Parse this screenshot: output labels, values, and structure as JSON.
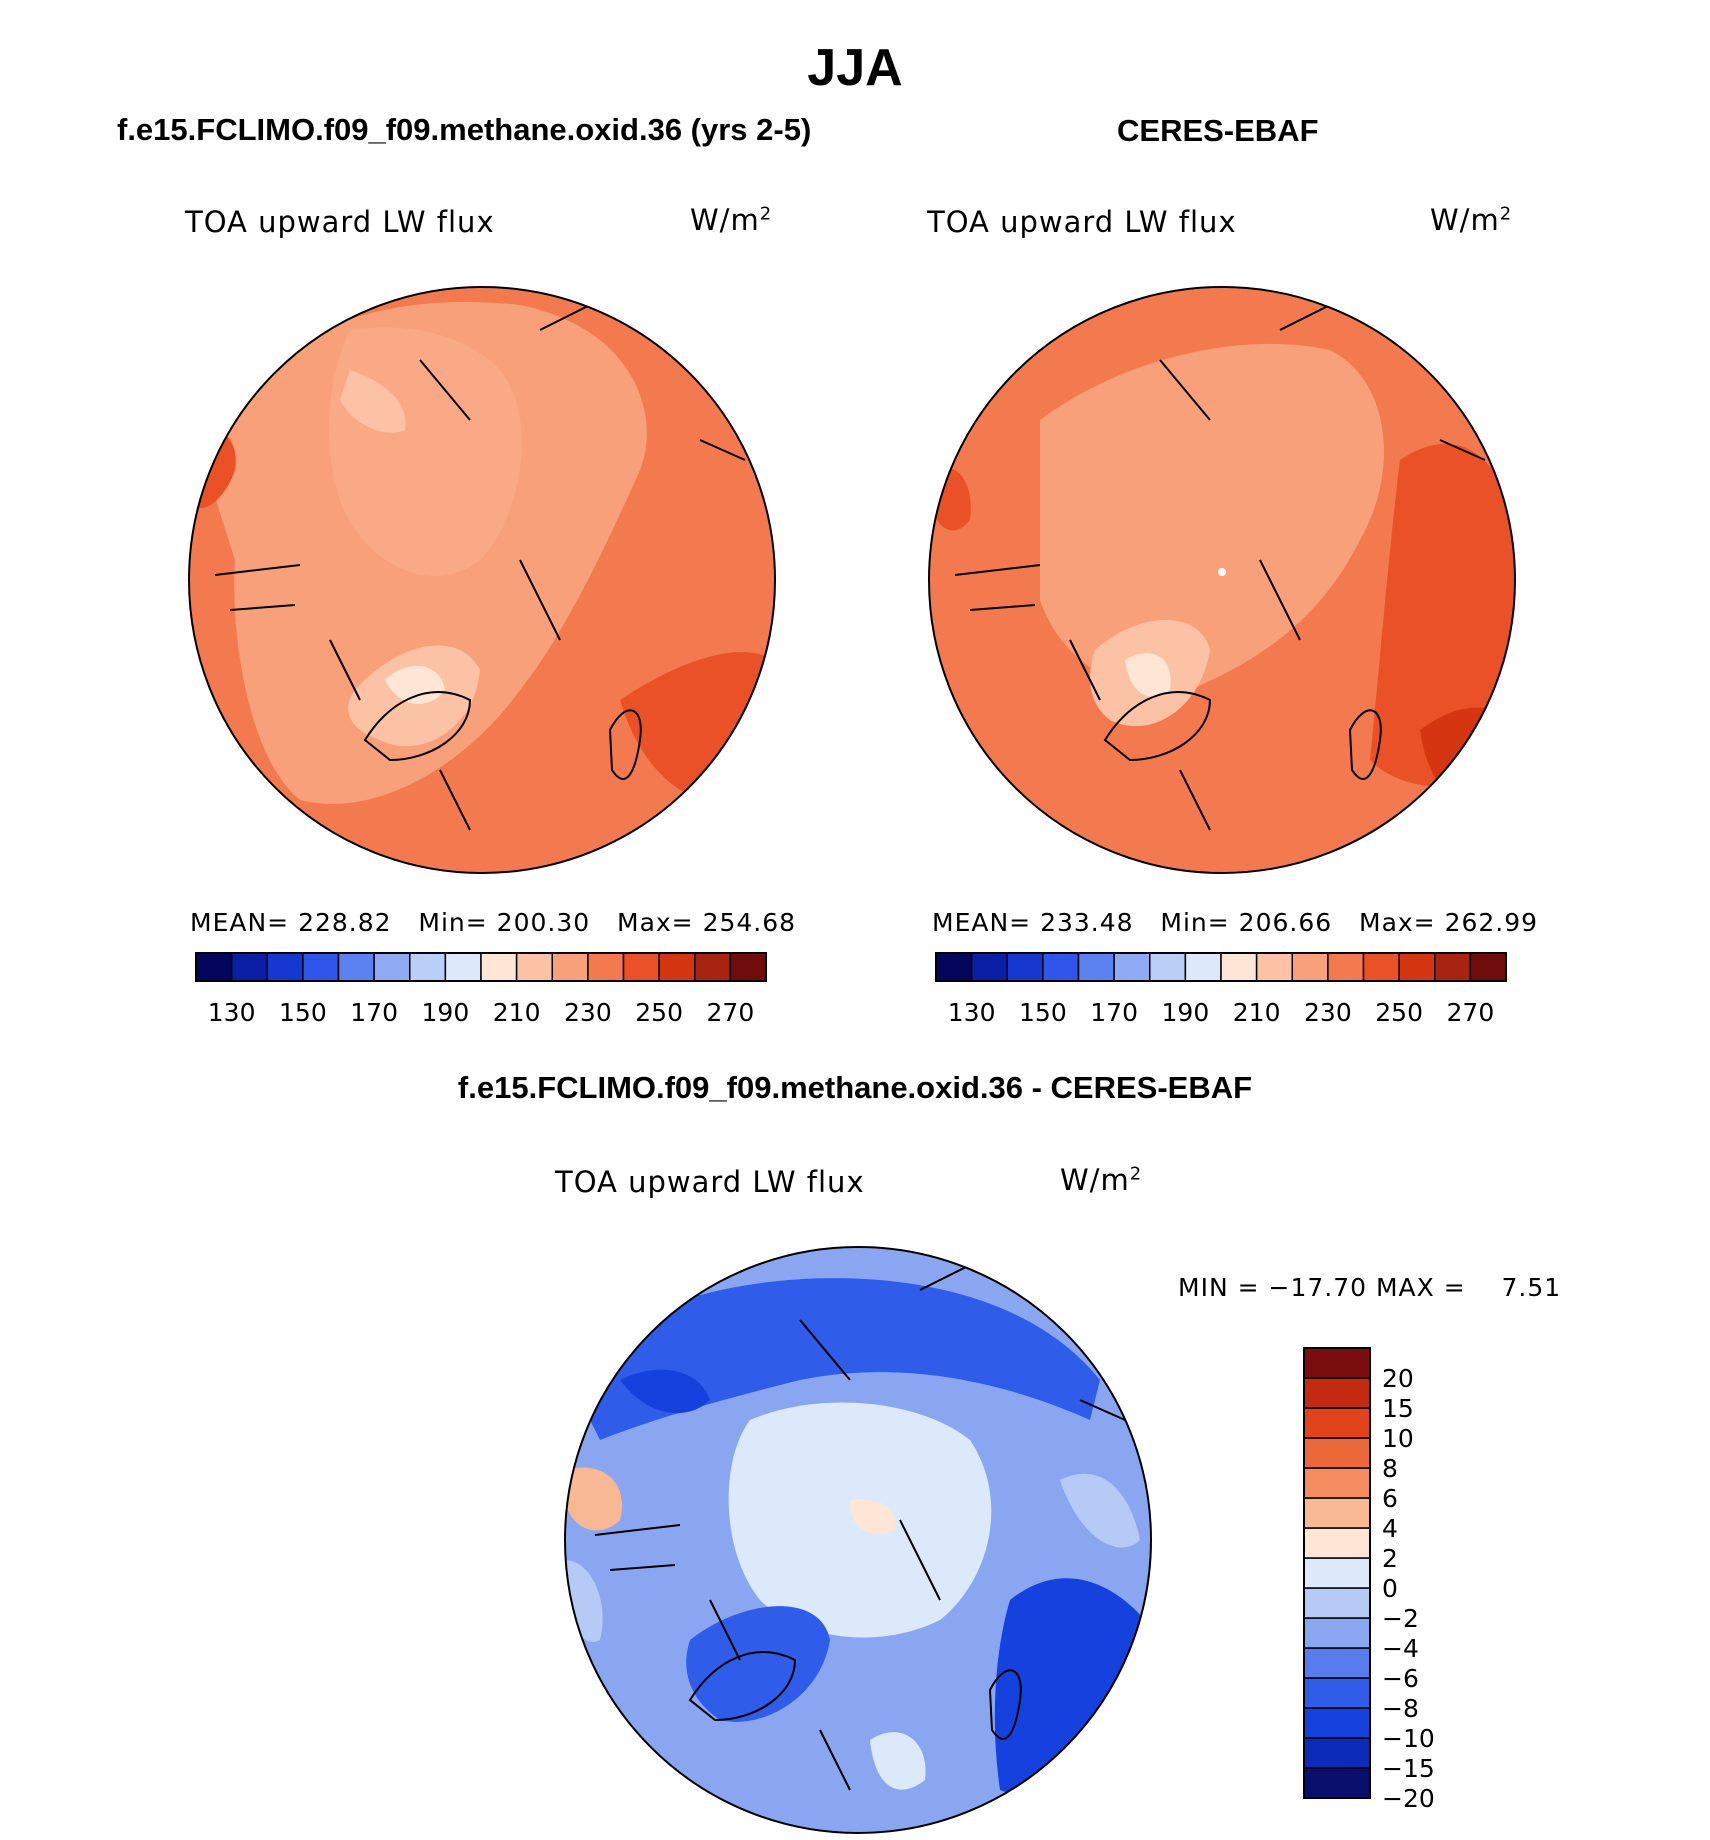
{
  "figure": {
    "title": "JJA"
  },
  "colors": {
    "abs_palette": [
      "#04065e",
      "#0a1fa4",
      "#1638d0",
      "#2f55ea",
      "#5b82f0",
      "#8faaf2",
      "#bacff6",
      "#dde9fb",
      "#fde6d6",
      "#fcc2a6",
      "#f7a07a",
      "#f37a4e",
      "#ea5126",
      "#d43612",
      "#a92311",
      "#700c0c"
    ],
    "diff_palette": [
      "#0a0f6e",
      "#0b2bb8",
      "#1542de",
      "#2f5ce8",
      "#587cec",
      "#8aa6f0",
      "#b5cbf6",
      "#dce9fb",
      "#fde6d6",
      "#f9b894",
      "#f38c5e",
      "#ed6838",
      "#e3431c",
      "#c22a12",
      "#7a0e0e"
    ]
  },
  "panels": {
    "model": {
      "title": "f.e15.FCLIMO.f09_f09.methane.oxid.36 (yrs 2-5)",
      "variable": "TOA upward LW flux",
      "units_base": "W/m",
      "units_exp": "2",
      "stats": {
        "mean_label": "MEAN=",
        "mean": "228.82",
        "min_label": "Min=",
        "min": "200.30",
        "max_label": "Max=",
        "max": "254.68"
      }
    },
    "obs": {
      "title": "CERES-EBAF",
      "variable": "TOA upward LW flux",
      "units_base": "W/m",
      "units_exp": "2",
      "stats": {
        "mean_label": "MEAN=",
        "mean": "233.48",
        "min_label": "Min=",
        "min": "206.66",
        "max_label": "Max=",
        "max": "262.99"
      }
    },
    "diff": {
      "title": "f.e15.FCLIMO.f09_f09.methane.oxid.36 - CERES-EBAF",
      "variable": "TOA upward LW flux",
      "units_base": "W/m",
      "units_exp": "2",
      "stats": {
        "min_label": "MIN =",
        "min": "−17.70",
        "max_label": "MAX =",
        "max": "7.51"
      }
    }
  },
  "chart_data": [
    {
      "type": "heatmap",
      "title": "f.e15.FCLIMO.f09_f09.methane.oxid.36 (yrs 2-5)",
      "subtitle": "TOA upward LW flux",
      "units": "W/m2",
      "projection": "north polar stereographic",
      "mean": 228.82,
      "min": 200.3,
      "max": 254.68,
      "colorbar": {
        "levels": [
          130,
          140,
          150,
          160,
          170,
          180,
          190,
          200,
          210,
          220,
          230,
          240,
          250,
          260,
          270
        ],
        "tick_labels": [
          "130",
          "150",
          "170",
          "190",
          "210",
          "230",
          "250",
          "270"
        ]
      }
    },
    {
      "type": "heatmap",
      "title": "CERES-EBAF",
      "subtitle": "TOA upward LW flux",
      "units": "W/m2",
      "projection": "north polar stereographic",
      "mean": 233.48,
      "min": 206.66,
      "max": 262.99,
      "colorbar": {
        "levels": [
          130,
          140,
          150,
          160,
          170,
          180,
          190,
          200,
          210,
          220,
          230,
          240,
          250,
          260,
          270
        ],
        "tick_labels": [
          "130",
          "150",
          "170",
          "190",
          "210",
          "230",
          "250",
          "270"
        ]
      }
    },
    {
      "type": "heatmap",
      "title": "f.e15.FCLIMO.f09_f09.methane.oxid.36 - CERES-EBAF",
      "subtitle": "TOA upward LW flux",
      "units": "W/m2",
      "projection": "north polar stereographic",
      "min": -17.7,
      "max": 7.51,
      "colorbar": {
        "levels": [
          -20,
          -15,
          -10,
          -8,
          -6,
          -4,
          -2,
          0,
          2,
          4,
          6,
          8,
          10,
          15,
          20
        ],
        "tick_labels": [
          "20",
          "15",
          "10",
          "8",
          "6",
          "4",
          "2",
          "0",
          "−2",
          "−4",
          "−6",
          "−8",
          "−10",
          "−15",
          "−20"
        ]
      }
    }
  ]
}
